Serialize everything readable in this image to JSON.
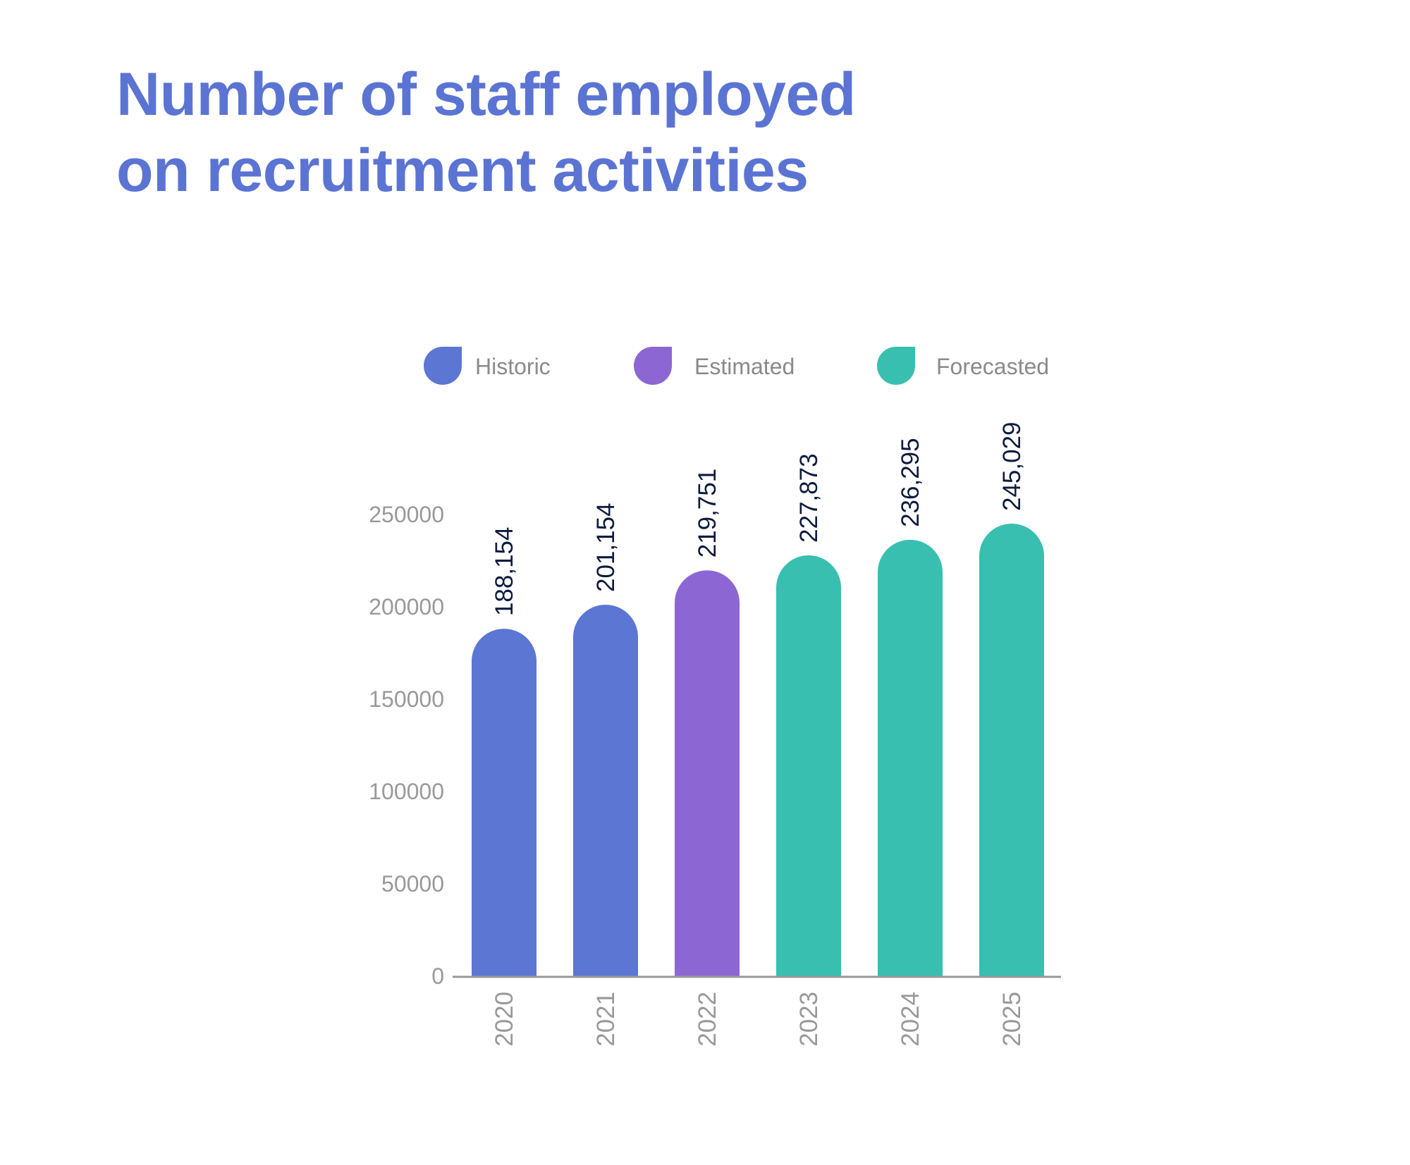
{
  "title": {
    "line1": "Number of staff employed",
    "line2": "on recruitment activities"
  },
  "colors": {
    "historic": "#5b76d3",
    "estimated": "#8c67d4",
    "forecasted": "#38bfb0",
    "axis": "#999999",
    "tick_text": "#999999",
    "value_text": "#0d1b3e",
    "title": "#5b74d3"
  },
  "chart_data": {
    "type": "bar",
    "categories": [
      "2020",
      "2021",
      "2022",
      "2023",
      "2024",
      "2025"
    ],
    "values": [
      188154,
      201154,
      219751,
      227873,
      236295,
      245029
    ],
    "value_labels": [
      "188,154",
      "201,154",
      "219,751",
      "227,873",
      "236,295",
      "245,029"
    ],
    "series_kind": [
      "historic",
      "historic",
      "estimated",
      "forecasted",
      "forecasted",
      "forecasted"
    ],
    "legend": [
      {
        "key": "historic",
        "label": "Historic"
      },
      {
        "key": "estimated",
        "label": "Estimated"
      },
      {
        "key": "forecasted",
        "label": "Forecasted"
      }
    ],
    "legend_position": "top",
    "yticks": [
      0,
      50000,
      100000,
      150000,
      200000,
      250000
    ],
    "ylim": [
      0,
      250000
    ],
    "grid": false
  }
}
